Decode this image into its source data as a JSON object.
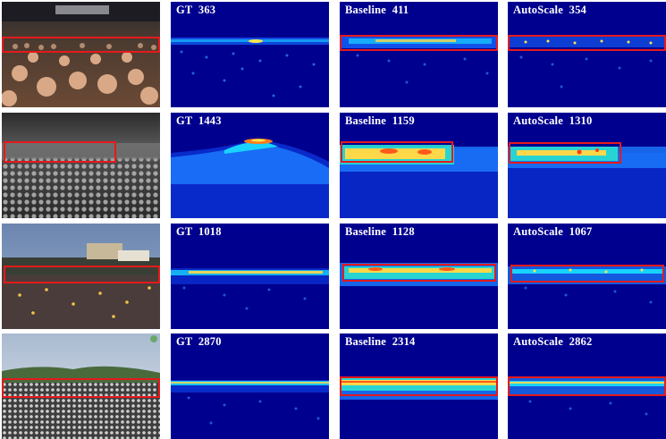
{
  "figure": {
    "rows": [
      {
        "scene": "indoor-concert-crowd",
        "maps": [
          {
            "method": "GT",
            "count": "363"
          },
          {
            "method": "Baseline",
            "count": "411"
          },
          {
            "method": "AutoScale",
            "count": "354"
          }
        ]
      },
      {
        "scene": "grayscale-dense-crowd",
        "maps": [
          {
            "method": "GT",
            "count": "1443"
          },
          {
            "method": "Baseline",
            "count": "1159"
          },
          {
            "method": "AutoScale",
            "count": "1310"
          }
        ]
      },
      {
        "scene": "evening-outdoor-gathering",
        "maps": [
          {
            "method": "GT",
            "count": "1018"
          },
          {
            "method": "Baseline",
            "count": "1128"
          },
          {
            "method": "AutoScale",
            "count": "1067"
          }
        ]
      },
      {
        "scene": "daytime-field-crowd",
        "maps": [
          {
            "method": "GT",
            "count": "2870"
          },
          {
            "method": "Baseline",
            "count": "2314"
          },
          {
            "method": "AutoScale",
            "count": "2862"
          }
        ]
      }
    ],
    "colors": {
      "highlight_box": "#e41a1c",
      "map_background": "#00008f"
    }
  }
}
